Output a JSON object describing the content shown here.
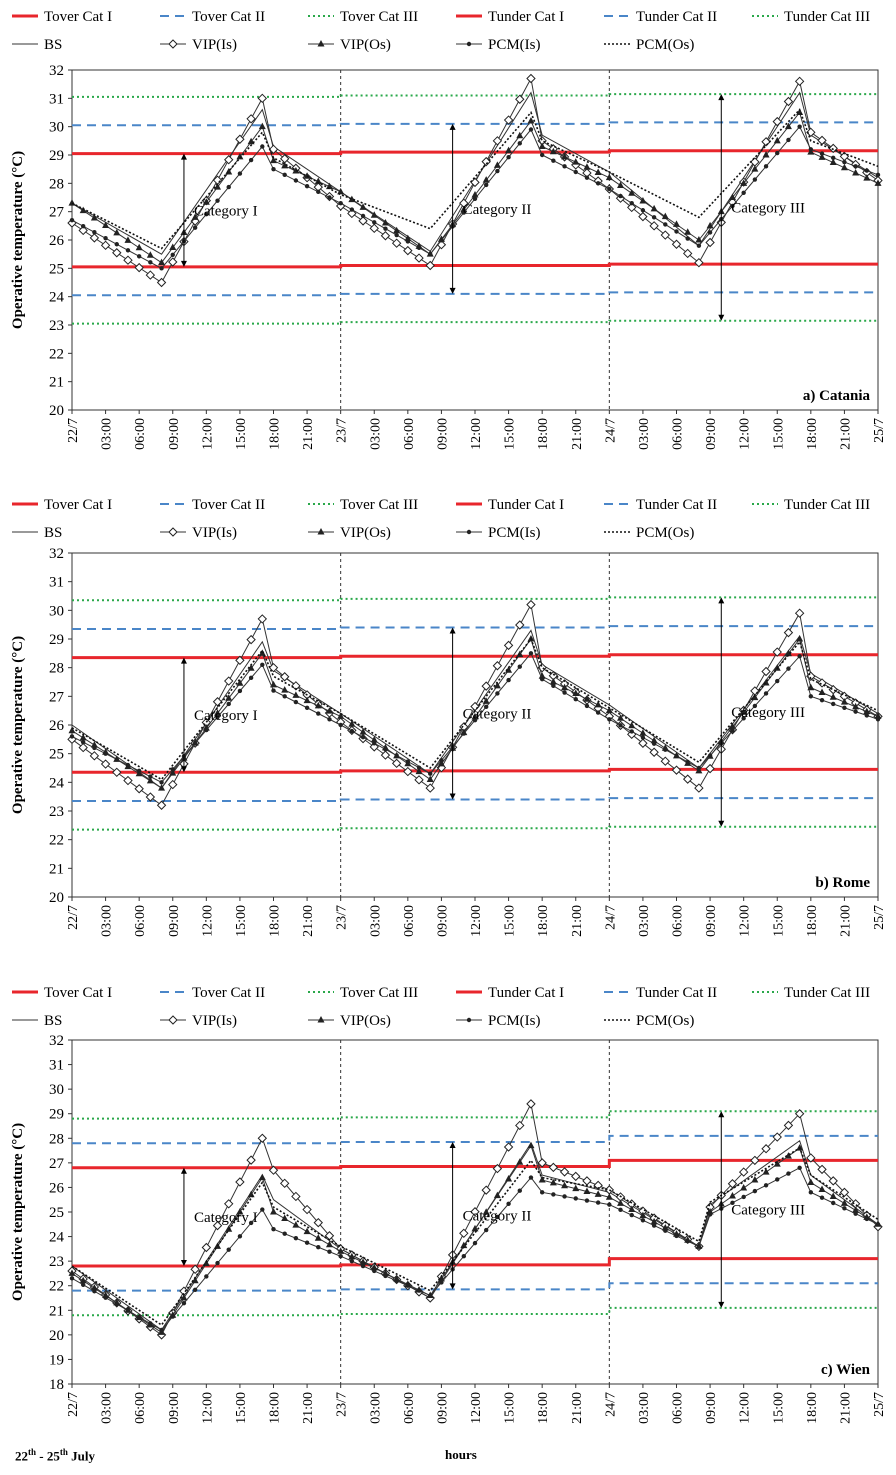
{
  "legend": {
    "row1": [
      "Tover Cat I",
      "Tover Cat II",
      "Tover Cat III",
      "Tunder Cat I",
      "Tunder Cat II",
      "Tunder Cat III"
    ],
    "row2": [
      "BS",
      "VIP(Is)",
      "VIP(Os)",
      "PCM(Is)",
      "PCM(Os)"
    ]
  },
  "colors": {
    "cat1": "#e8262c",
    "cat2": "#4a86c8",
    "cat3": "#2aa84a",
    "series": "#333333"
  },
  "footer": {
    "left_main": "22",
    "left_sup1": "th",
    "left_mid": " - 25",
    "left_sup2": "th",
    "left_end": " July",
    "xlabel": "hours"
  },
  "chart_data": [
    {
      "type": "line",
      "title": "a) Catania",
      "ylabel": "Operative temperature (°C)",
      "ylim": [
        20,
        32
      ],
      "yticks": [
        20,
        21,
        22,
        23,
        24,
        25,
        26,
        27,
        28,
        29,
        30,
        31,
        32
      ],
      "xticks": [
        "22/7",
        "03:00",
        "06:00",
        "09:00",
        "12:00",
        "15:00",
        "18:00",
        "21:00",
        "23/7",
        "03:00",
        "06:00",
        "09:00",
        "12:00",
        "15:00",
        "18:00",
        "21:00",
        "24/7",
        "03:00",
        "06:00",
        "09:00",
        "12:00",
        "15:00",
        "18:00",
        "21:00",
        "25/7"
      ],
      "day_dividers": [
        24,
        48
      ],
      "thresholds": {
        "Tover Cat I": [
          29.05,
          29.1,
          29.15
        ],
        "Tover Cat II": [
          30.05,
          30.1,
          30.15
        ],
        "Tover Cat III": [
          31.05,
          31.1,
          31.15
        ],
        "Tunder Cat I": [
          25.05,
          25.1,
          25.15
        ],
        "Tunder Cat II": [
          24.05,
          24.1,
          24.15
        ],
        "Tunder Cat III": [
          23.05,
          23.1,
          23.15
        ]
      },
      "series": [
        {
          "name": "BS",
          "x": [
            0,
            8,
            17,
            18,
            24,
            32,
            41,
            42,
            48,
            56,
            65,
            66,
            72
          ],
          "y": [
            27.3,
            25.5,
            30.6,
            29.3,
            27.7,
            25.6,
            31.2,
            29.7,
            28.4,
            25.8,
            31.2,
            29.7,
            28.2
          ]
        },
        {
          "name": "VIP(Is)",
          "x": [
            0,
            8,
            17,
            18,
            24,
            32,
            41,
            42,
            48,
            56,
            65,
            66,
            72
          ],
          "y": [
            26.6,
            24.5,
            31.0,
            29.2,
            27.2,
            25.1,
            31.7,
            29.5,
            27.8,
            25.2,
            31.6,
            29.8,
            28.1
          ]
        },
        {
          "name": "VIP(Os)",
          "x": [
            0,
            8,
            17,
            18,
            24,
            32,
            41,
            42,
            48,
            56,
            65,
            66,
            72
          ],
          "y": [
            27.3,
            25.2,
            30.0,
            28.8,
            27.7,
            25.5,
            30.2,
            29.3,
            28.2,
            26.0,
            30.5,
            29.1,
            28.0
          ]
        },
        {
          "name": "PCM(Is)",
          "x": [
            0,
            8,
            17,
            18,
            24,
            32,
            41,
            42,
            48,
            56,
            65,
            66,
            72
          ],
          "y": [
            26.7,
            25.0,
            29.3,
            28.5,
            27.3,
            25.5,
            29.9,
            29.0,
            27.8,
            25.8,
            30.0,
            29.2,
            28.3
          ]
        },
        {
          "name": "PCM(Os)",
          "x": [
            0,
            8,
            17,
            18,
            24,
            32,
            41,
            42,
            48,
            56,
            65,
            66,
            72
          ],
          "y": [
            27.3,
            25.7,
            29.8,
            28.9,
            27.6,
            26.4,
            30.5,
            29.5,
            28.4,
            26.8,
            30.6,
            29.5,
            28.6
          ]
        }
      ],
      "annotations": [
        "Category I",
        "Category II",
        "Category III"
      ],
      "arrows": [
        {
          "x": 10,
          "y1": 25.05,
          "y2": 29.05
        },
        {
          "x": 34,
          "y1": 24.1,
          "y2": 30.1
        },
        {
          "x": 58,
          "y1": 23.15,
          "y2": 31.15
        }
      ]
    },
    {
      "type": "line",
      "title": "b) Rome",
      "ylabel": "Operative temperature (°C)",
      "ylim": [
        20,
        32
      ],
      "yticks": [
        20,
        21,
        22,
        23,
        24,
        25,
        26,
        27,
        28,
        29,
        30,
        31,
        32
      ],
      "xticks": [
        "22/7",
        "03:00",
        "06:00",
        "09:00",
        "12:00",
        "15:00",
        "18:00",
        "21:00",
        "23/7",
        "03:00",
        "06:00",
        "09:00",
        "12:00",
        "15:00",
        "18:00",
        "21:00",
        "24/7",
        "03:00",
        "06:00",
        "09:00",
        "12:00",
        "15:00",
        "18:00",
        "21:00",
        "25/7"
      ],
      "day_dividers": [
        24,
        48
      ],
      "thresholds": {
        "Tover Cat I": [
          28.35,
          28.4,
          28.45
        ],
        "Tover Cat II": [
          29.35,
          29.4,
          29.45
        ],
        "Tover Cat III": [
          30.35,
          30.4,
          30.45
        ],
        "Tunder Cat I": [
          24.35,
          24.4,
          24.45
        ],
        "Tunder Cat II": [
          23.35,
          23.4,
          23.45
        ],
        "Tunder Cat III": [
          22.35,
          22.4,
          22.45
        ]
      },
      "series": [
        {
          "name": "BS",
          "x": [
            0,
            8,
            17,
            18,
            24,
            32,
            41,
            42,
            48,
            56,
            65,
            66,
            72
          ],
          "y": [
            26.0,
            23.8,
            28.9,
            27.9,
            26.4,
            24.3,
            29.3,
            28.1,
            26.7,
            24.5,
            29.1,
            27.8,
            26.4
          ]
        },
        {
          "name": "VIP(Is)",
          "x": [
            0,
            8,
            17,
            18,
            24,
            32,
            41,
            42,
            48,
            56,
            65,
            66,
            72
          ],
          "y": [
            25.5,
            23.2,
            29.7,
            28.0,
            26.1,
            23.8,
            30.2,
            28.0,
            26.3,
            23.8,
            29.9,
            27.7,
            26.3
          ]
        },
        {
          "name": "VIP(Os)",
          "x": [
            0,
            8,
            17,
            18,
            24,
            32,
            41,
            42,
            48,
            56,
            65,
            66,
            72
          ],
          "y": [
            25.8,
            23.8,
            28.5,
            27.4,
            26.3,
            24.1,
            29.0,
            27.7,
            26.5,
            24.4,
            29.0,
            27.3,
            26.3
          ]
        },
        {
          "name": "PCM(Is)",
          "x": [
            0,
            8,
            17,
            18,
            24,
            32,
            41,
            42,
            48,
            56,
            65,
            66,
            72
          ],
          "y": [
            25.6,
            24.0,
            28.1,
            27.2,
            26.0,
            24.3,
            28.5,
            27.6,
            26.2,
            24.5,
            28.4,
            27.0,
            26.2
          ]
        },
        {
          "name": "PCM(Os)",
          "x": [
            0,
            8,
            17,
            18,
            24,
            32,
            41,
            42,
            48,
            56,
            65,
            66,
            72
          ],
          "y": [
            25.9,
            24.1,
            28.6,
            27.7,
            26.4,
            24.5,
            29.0,
            28.0,
            26.6,
            24.7,
            28.9,
            27.6,
            26.5
          ]
        }
      ],
      "annotations": [
        "Category I",
        "Category II",
        "Category III"
      ],
      "arrows": [
        {
          "x": 10,
          "y1": 24.35,
          "y2": 28.35
        },
        {
          "x": 34,
          "y1": 23.4,
          "y2": 29.4
        },
        {
          "x": 58,
          "y1": 22.45,
          "y2": 30.45
        }
      ]
    },
    {
      "type": "line",
      "title": "c) Wien",
      "ylabel": "Operative temperature (°C)",
      "ylim": [
        18,
        32
      ],
      "yticks": [
        18,
        19,
        20,
        21,
        22,
        23,
        24,
        25,
        26,
        27,
        28,
        29,
        30,
        31,
        32
      ],
      "xticks": [
        "22/7",
        "03:00",
        "06:00",
        "09:00",
        "12:00",
        "15:00",
        "18:00",
        "21:00",
        "23/7",
        "03:00",
        "06:00",
        "09:00",
        "12:00",
        "15:00",
        "18:00",
        "21:00",
        "24/7",
        "03:00",
        "06:00",
        "09:00",
        "12:00",
        "15:00",
        "18:00",
        "21:00",
        "25/7"
      ],
      "day_dividers": [
        24,
        48
      ],
      "thresholds": {
        "Tover Cat I": [
          26.8,
          26.85,
          27.1
        ],
        "Tover Cat II": [
          27.8,
          27.85,
          28.1
        ],
        "Tover Cat III": [
          28.8,
          28.85,
          29.1
        ],
        "Tunder Cat I": [
          22.8,
          22.85,
          23.1
        ],
        "Tunder Cat II": [
          21.8,
          21.85,
          22.1
        ],
        "Tunder Cat III": [
          20.8,
          20.85,
          21.1
        ]
      },
      "series": [
        {
          "name": "BS",
          "x": [
            0,
            8,
            17,
            18,
            24,
            32,
            41,
            42,
            48,
            56,
            57,
            65,
            66,
            72
          ],
          "y": [
            22.8,
            20.2,
            26.5,
            25.5,
            23.5,
            21.5,
            27.8,
            26.5,
            25.8,
            23.6,
            25.3,
            27.9,
            26.5,
            24.5
          ]
        },
        {
          "name": "VIP(Is)",
          "x": [
            0,
            8,
            17,
            18,
            24,
            32,
            41,
            42,
            48,
            56,
            57,
            65,
            66,
            72
          ],
          "y": [
            22.6,
            20.0,
            28.0,
            26.7,
            23.5,
            21.5,
            29.4,
            27.0,
            25.9,
            23.6,
            25.2,
            29.0,
            27.2,
            24.4
          ]
        },
        {
          "name": "VIP(Os)",
          "x": [
            0,
            8,
            17,
            18,
            24,
            32,
            41,
            42,
            48,
            56,
            57,
            65,
            66,
            72
          ],
          "y": [
            22.5,
            20.1,
            26.4,
            25.0,
            23.4,
            21.6,
            27.7,
            26.3,
            25.6,
            23.6,
            25.0,
            27.6,
            26.2,
            24.5
          ]
        },
        {
          "name": "PCM(Is)",
          "x": [
            0,
            8,
            17,
            18,
            24,
            32,
            41,
            42,
            48,
            56,
            57,
            65,
            66,
            72
          ],
          "y": [
            22.3,
            20.2,
            25.1,
            24.3,
            23.2,
            21.6,
            26.4,
            25.8,
            25.3,
            23.6,
            24.9,
            26.8,
            25.8,
            24.5
          ]
        },
        {
          "name": "PCM(Os)",
          "x": [
            0,
            8,
            17,
            18,
            24,
            32,
            41,
            42,
            48,
            56,
            57,
            65,
            66,
            72
          ],
          "y": [
            22.8,
            20.4,
            26.2,
            25.2,
            23.6,
            21.8,
            27.1,
            26.4,
            25.9,
            23.8,
            25.4,
            27.6,
            26.5,
            24.7
          ]
        }
      ],
      "annotations": [
        "Category I",
        "Category II",
        "Category III"
      ],
      "arrows": [
        {
          "x": 10,
          "y1": 22.8,
          "y2": 26.8
        },
        {
          "x": 34,
          "y1": 21.85,
          "y2": 27.85
        },
        {
          "x": 58,
          "y1": 21.1,
          "y2": 29.1
        }
      ]
    }
  ]
}
